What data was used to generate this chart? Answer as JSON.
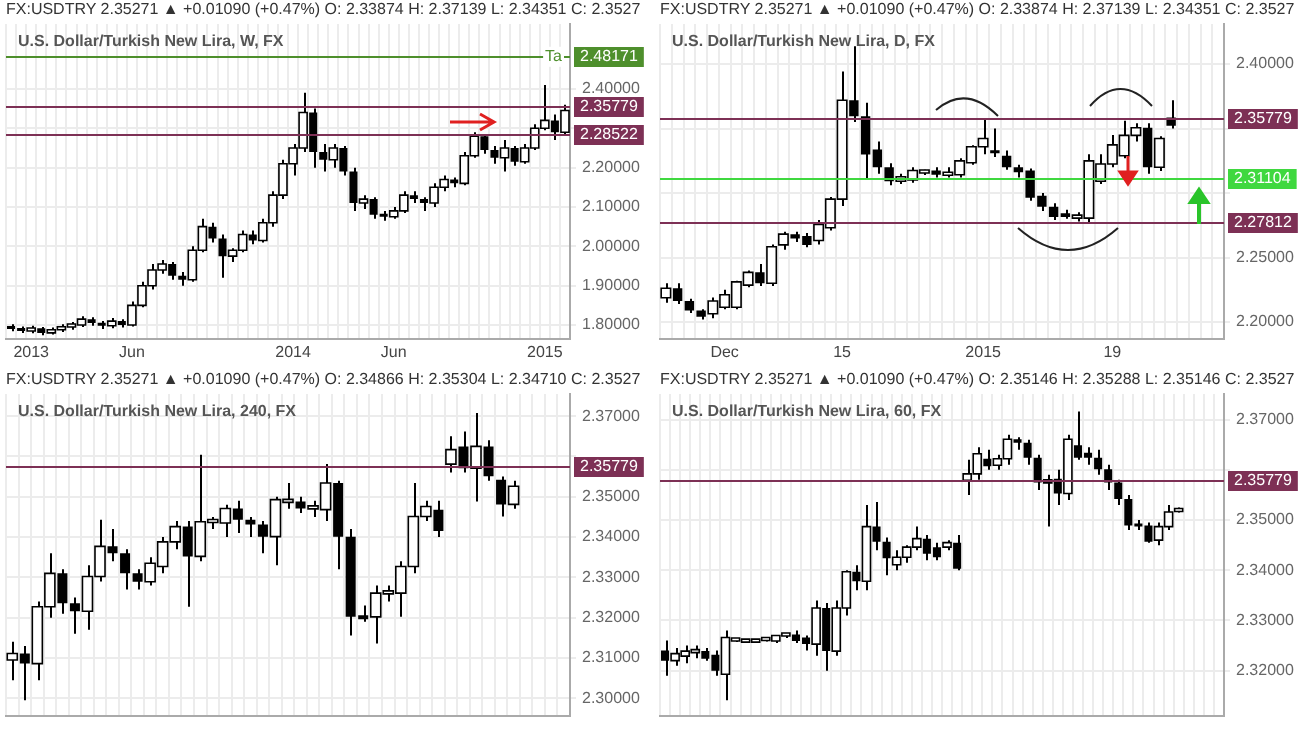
{
  "chart_data": [
    {
      "type": "candlestick",
      "title": "U.S. Dollar/Turkish New Lira, W, FX",
      "subtitle": "FX:USDTRY 2.35271 ▲ +0.01090 (+0.47%) O: 2.33874 H: 2.37139 L: 2.34351 C: 2.3527",
      "grid": true,
      "annotations": [
        "Ta"
      ],
      "categories": [
        null,
        null,
        "2013",
        null,
        null,
        null,
        null,
        null,
        null,
        null,
        null,
        null,
        "Jun",
        null,
        null,
        null,
        null,
        null,
        null,
        null,
        null,
        null,
        null,
        null,
        null,
        null,
        null,
        null,
        "2014",
        null,
        null,
        null,
        null,
        null,
        null,
        null,
        null,
        null,
        "Jun",
        null,
        null,
        null,
        null,
        null,
        null,
        null,
        null,
        null,
        null,
        null,
        null,
        null,
        null,
        "2015",
        null,
        null
      ],
      "ohlc": [
        [
          1.795,
          1.802,
          1.784,
          1.79
        ],
        [
          1.79,
          1.796,
          1.78,
          1.785
        ],
        [
          1.785,
          1.798,
          1.779,
          1.792
        ],
        [
          1.792,
          1.795,
          1.774,
          1.78
        ],
        [
          1.78,
          1.794,
          1.776,
          1.788
        ],
        [
          1.788,
          1.802,
          1.782,
          1.795
        ],
        [
          1.795,
          1.808,
          1.788,
          1.8
        ],
        [
          1.8,
          1.822,
          1.795,
          1.815
        ],
        [
          1.815,
          1.82,
          1.798,
          1.805
        ],
        [
          1.805,
          1.81,
          1.79,
          1.798
        ],
        [
          1.798,
          1.818,
          1.792,
          1.81
        ],
        [
          1.81,
          1.815,
          1.794,
          1.8
        ],
        [
          1.8,
          1.86,
          1.796,
          1.85
        ],
        [
          1.85,
          1.91,
          1.845,
          1.9
        ],
        [
          1.9,
          1.955,
          1.89,
          1.94
        ],
        [
          1.94,
          1.965,
          1.93,
          1.955
        ],
        [
          1.955,
          1.96,
          1.915,
          1.925
        ],
        [
          1.925,
          1.935,
          1.9,
          1.915
        ],
        [
          1.915,
          2.0,
          1.91,
          1.99
        ],
        [
          1.99,
          2.07,
          1.985,
          2.05
        ],
        [
          2.05,
          2.06,
          2.01,
          2.02
        ],
        [
          2.02,
          2.03,
          1.92,
          1.975
        ],
        [
          1.975,
          1.995,
          1.96,
          1.99
        ],
        [
          1.99,
          2.04,
          1.985,
          2.03
        ],
        [
          2.03,
          2.04,
          2.005,
          2.015
        ],
        [
          2.015,
          2.07,
          2.01,
          2.06
        ],
        [
          2.06,
          2.14,
          2.05,
          2.13
        ],
        [
          2.13,
          2.22,
          2.12,
          2.21
        ],
        [
          2.21,
          2.26,
          2.18,
          2.25
        ],
        [
          2.25,
          2.39,
          2.24,
          2.34
        ],
        [
          2.34,
          2.35,
          2.2,
          2.24
        ],
        [
          2.24,
          2.26,
          2.19,
          2.22
        ],
        [
          2.22,
          2.26,
          2.2,
          2.25
        ],
        [
          2.25,
          2.255,
          2.18,
          2.19
        ],
        [
          2.19,
          2.2,
          2.09,
          2.11
        ],
        [
          2.11,
          2.13,
          2.095,
          2.12
        ],
        [
          2.12,
          2.125,
          2.07,
          2.08
        ],
        [
          2.08,
          2.09,
          2.065,
          2.075
        ],
        [
          2.075,
          2.1,
          2.07,
          2.09
        ],
        [
          2.09,
          2.14,
          2.085,
          2.13
        ],
        [
          2.13,
          2.14,
          2.11,
          2.12
        ],
        [
          2.12,
          2.125,
          2.09,
          2.11
        ],
        [
          2.11,
          2.16,
          2.1,
          2.15
        ],
        [
          2.15,
          2.18,
          2.14,
          2.17
        ],
        [
          2.17,
          2.175,
          2.15,
          2.16
        ],
        [
          2.16,
          2.24,
          2.155,
          2.23
        ],
        [
          2.23,
          2.29,
          2.225,
          2.28
        ],
        [
          2.28,
          2.285,
          2.235,
          2.245
        ],
        [
          2.245,
          2.255,
          2.21,
          2.225
        ],
        [
          2.225,
          2.27,
          2.19,
          2.25
        ],
        [
          2.25,
          2.255,
          2.205,
          2.215
        ],
        [
          2.215,
          2.26,
          2.21,
          2.25
        ],
        [
          2.25,
          2.31,
          2.245,
          2.3
        ],
        [
          2.3,
          2.41,
          2.295,
          2.32
        ],
        [
          2.32,
          2.335,
          2.27,
          2.29
        ],
        [
          2.29,
          2.36,
          2.285,
          2.345
        ]
      ],
      "ylim": [
        1.765,
        2.565
      ],
      "yticks": [
        {
          "value": 1.8,
          "label": "1.80000"
        },
        {
          "value": 1.9,
          "label": "1.90000"
        },
        {
          "value": 2.0,
          "label": "2.00000"
        },
        {
          "value": 2.1,
          "label": "2.10000"
        },
        {
          "value": 2.2,
          "label": "2.20000"
        },
        {
          "value": 2.3,
          "label": null
        },
        {
          "value": 2.4,
          "label": "2.40000"
        }
      ],
      "ref_lines": [
        {
          "axis": "y",
          "value": 2.48171,
          "label": "2.48171",
          "color": "#4e8f2c"
        },
        {
          "axis": "y",
          "value": 2.35779,
          "label": "2.35779",
          "color": "#7d3055"
        },
        {
          "axis": "y",
          "value": 2.28522,
          "label": "2.28522",
          "color": "#7d3055"
        }
      ]
    },
    {
      "type": "candlestick",
      "title": "U.S. Dollar/Turkish New Lira, D, FX",
      "subtitle": "FX:USDTRY 2.35271 ▲ +0.01090 (+0.47%) O: 2.33874 H: 2.37139 L: 2.34351 C: 2.3527",
      "grid": true,
      "categories": [
        null,
        null,
        null,
        null,
        null,
        "Dec",
        null,
        null,
        null,
        null,
        null,
        null,
        null,
        null,
        null,
        "15",
        null,
        null,
        null,
        null,
        null,
        null,
        null,
        null,
        null,
        null,
        null,
        "2015",
        null,
        null,
        null,
        null,
        null,
        null,
        null,
        null,
        null,
        null,
        "19",
        null,
        null,
        null,
        null,
        null,
        null,
        null,
        null,
        null
      ],
      "ohlc": [
        [
          2.2188,
          2.23,
          2.215,
          2.2262
        ],
        [
          2.2262,
          2.23,
          2.214,
          2.2163
        ],
        [
          2.2163,
          2.218,
          2.207,
          2.2089
        ],
        [
          2.2089,
          2.21,
          2.202,
          2.204
        ],
        [
          2.2064,
          2.219,
          2.203,
          2.2163
        ],
        [
          2.2114,
          2.225,
          2.21,
          2.2212
        ],
        [
          2.2114,
          2.232,
          2.21,
          2.2311
        ],
        [
          2.2286,
          2.24,
          2.227,
          2.2385
        ],
        [
          2.2385,
          2.245,
          2.228,
          2.2301
        ],
        [
          2.2301,
          2.26,
          2.228,
          2.2583
        ],
        [
          2.2598,
          2.27,
          2.256,
          2.2681
        ],
        [
          2.2681,
          2.27,
          2.262,
          2.2647
        ],
        [
          2.2666,
          2.269,
          2.258,
          2.2598
        ],
        [
          2.2632,
          2.279,
          2.26,
          2.2756
        ],
        [
          2.2731,
          2.297,
          2.271,
          2.2953
        ],
        [
          2.2953,
          2.3941,
          2.29,
          2.3719
        ],
        [
          2.3719,
          2.4138,
          2.355,
          2.3595
        ],
        [
          2.3595,
          2.37,
          2.31,
          2.3299
        ],
        [
          2.3338,
          2.34,
          2.315,
          2.32
        ],
        [
          2.32,
          2.323,
          2.306,
          2.3091
        ],
        [
          2.3091,
          2.315,
          2.307,
          2.3126
        ],
        [
          2.3101,
          2.32,
          2.308,
          2.3175
        ],
        [
          2.3155,
          2.318,
          2.314,
          2.316
        ],
        [
          2.3175,
          2.32,
          2.312,
          2.3141
        ],
        [
          2.3138,
          2.32,
          2.312,
          2.3141
        ],
        [
          2.3141,
          2.327,
          2.312,
          2.3249
        ],
        [
          2.3235,
          2.337,
          2.322,
          2.3358
        ],
        [
          2.3358,
          2.357,
          2.33,
          2.3422
        ],
        [
          2.332,
          2.35,
          2.328,
          2.3309
        ],
        [
          2.3289,
          2.333,
          2.318,
          2.32
        ],
        [
          2.32,
          2.322,
          2.312,
          2.316
        ],
        [
          2.3175,
          2.319,
          2.294,
          2.2963
        ],
        [
          2.2978,
          2.3,
          2.286,
          2.2894
        ],
        [
          2.2894,
          2.292,
          2.279,
          2.2815
        ],
        [
          2.2844,
          2.287,
          2.28,
          2.2815
        ],
        [
          2.2805,
          2.285,
          2.278,
          2.2815
        ],
        [
          2.2805,
          2.33,
          2.277,
          2.3249
        ],
        [
          2.3091,
          2.33,
          2.307,
          2.3225
        ],
        [
          2.3225,
          2.345,
          2.32,
          2.3373
        ],
        [
          2.3289,
          2.356,
          2.327,
          2.3447
        ],
        [
          2.3447,
          2.354,
          2.34,
          2.3506
        ],
        [
          2.3506,
          2.354,
          2.315,
          2.32
        ],
        [
          2.32,
          2.344,
          2.317,
          2.3422
        ],
        [
          2.3585,
          2.3719,
          2.35,
          2.3521
        ],
        null,
        null,
        null,
        null
      ],
      "ylim": [
        2.187,
        2.431
      ],
      "yticks": [
        {
          "value": 2.2,
          "label": "2.20000"
        },
        {
          "value": 2.25,
          "label": "2.25000"
        },
        {
          "value": 2.3,
          "label": null
        },
        {
          "value": 2.35,
          "label": null
        },
        {
          "value": 2.4,
          "label": "2.40000"
        }
      ],
      "ref_lines": [
        {
          "axis": "y",
          "value": 2.35779,
          "label": "2.35779",
          "color": "#7d3055"
        },
        {
          "axis": "y",
          "value": 2.31104,
          "label": "2.31104",
          "color": "#3fd83f"
        },
        {
          "axis": "y",
          "value": 2.27812,
          "label": "2.27812",
          "color": "#7d3055"
        }
      ]
    },
    {
      "type": "candlestick",
      "title": "U.S. Dollar/Turkish New Lira, 240, FX",
      "subtitle": "FX:USDTRY 2.35271 ▲ +0.01090 (+0.47%) O: 2.34866 H: 2.35304 L: 2.34710 C: 2.3527",
      "grid": true,
      "tick_labels": "y",
      "categories": [
        null,
        null,
        null,
        null,
        null,
        null,
        null,
        null,
        null,
        null,
        null,
        null,
        null,
        null,
        null,
        null,
        null,
        null,
        null,
        null,
        null,
        null,
        null,
        null,
        null,
        null,
        null,
        null,
        null,
        null,
        null,
        null,
        null,
        null,
        null,
        null,
        null,
        null,
        null,
        null,
        null,
        null,
        null,
        null,
        null
      ],
      "ohlc": [
        [
          2.3095,
          2.314,
          2.3045,
          2.3111
        ],
        [
          2.3111,
          2.313,
          2.2995,
          2.3086
        ],
        [
          2.3086,
          2.324,
          2.3045,
          2.3227
        ],
        [
          2.3227,
          2.336,
          2.32,
          2.331
        ],
        [
          2.331,
          2.332,
          2.321,
          2.3236
        ],
        [
          2.3236,
          2.325,
          2.316,
          2.3216
        ],
        [
          2.3216,
          2.333,
          2.317,
          2.3302
        ],
        [
          2.3302,
          2.3443,
          2.329,
          2.3377
        ],
        [
          2.3377,
          2.342,
          2.334,
          2.336
        ],
        [
          2.336,
          2.337,
          2.327,
          2.331
        ],
        [
          2.331,
          2.332,
          2.327,
          2.3289
        ],
        [
          2.3289,
          2.335,
          2.328,
          2.3335
        ],
        [
          2.3327,
          2.34,
          2.331,
          2.3388
        ],
        [
          2.3388,
          2.344,
          2.337,
          2.3426
        ],
        [
          2.3426,
          2.344,
          2.3227,
          2.3352
        ],
        [
          2.3352,
          2.3604,
          2.334,
          2.3438
        ],
        [
          2.3436,
          2.345,
          2.342,
          2.3438
        ],
        [
          2.3435,
          2.348,
          2.34,
          2.3471
        ],
        [
          2.3471,
          2.349,
          2.341,
          2.3443
        ],
        [
          2.3443,
          2.345,
          2.34,
          2.3431
        ],
        [
          2.3431,
          2.344,
          2.336,
          2.3401
        ],
        [
          2.3401,
          2.35,
          2.333,
          2.3493
        ],
        [
          2.3486,
          2.3534,
          2.347,
          2.3488
        ],
        [
          2.3488,
          2.35,
          2.346,
          2.3471
        ],
        [
          2.347,
          2.349,
          2.345,
          2.3472
        ],
        [
          2.3468,
          2.3581,
          2.344,
          2.3534
        ],
        [
          2.3534,
          2.354,
          2.332,
          2.3401
        ],
        [
          2.3401,
          2.342,
          2.3156,
          2.3202
        ],
        [
          2.3206,
          2.323,
          2.319,
          2.3196
        ],
        [
          2.3202,
          2.328,
          2.3136,
          2.3261
        ],
        [
          2.3259,
          2.328,
          2.324,
          2.3261
        ],
        [
          2.3261,
          2.334,
          2.3202,
          2.3327
        ],
        [
          2.3327,
          2.3534,
          2.331,
          2.3451
        ],
        [
          2.3451,
          2.349,
          2.344,
          2.3476
        ],
        [
          2.3468,
          2.349,
          2.34,
          2.3415
        ],
        [
          2.3581,
          2.365,
          2.356,
          2.3617
        ],
        [
          2.3625,
          2.3662,
          2.356,
          2.3571
        ],
        [
          2.3571,
          2.3708,
          2.3488,
          2.3625
        ],
        [
          2.3625,
          2.364,
          2.354,
          2.3551
        ],
        [
          2.3542,
          2.355,
          2.3451,
          2.3481
        ],
        [
          2.3481,
          2.354,
          2.347,
          2.3526
        ],
        null,
        null,
        null,
        null
      ],
      "ylim": [
        2.2955,
        2.3755
      ],
      "yticks": [
        {
          "value": 2.3,
          "label": "2.30000"
        },
        {
          "value": 2.31,
          "label": "2.31000"
        },
        {
          "value": 2.32,
          "label": "2.32000"
        },
        {
          "value": 2.33,
          "label": "2.33000"
        },
        {
          "value": 2.34,
          "label": "2.34000"
        },
        {
          "value": 2.35,
          "label": "2.35000"
        },
        {
          "value": 2.36,
          "label": null
        },
        {
          "value": 2.37,
          "label": "2.37000"
        }
      ],
      "ref_lines": [
        {
          "axis": "y",
          "value": 2.35779,
          "label": "2.35779",
          "color": "#7d3055"
        }
      ]
    },
    {
      "type": "candlestick",
      "title": "U.S. Dollar/Turkish New Lira, 60, FX",
      "subtitle": "FX:USDTRY 2.35271 ▲ +0.01090 (+0.47%) O: 2.35146 H: 2.35288 L: 2.35146 C: 2.3527",
      "grid": true,
      "tick_labels": "y",
      "categories": [
        null,
        null,
        null,
        null,
        null,
        null,
        null,
        null,
        null,
        null,
        null,
        null,
        null,
        null,
        null,
        null,
        null,
        null,
        null,
        null,
        null,
        null,
        null,
        null,
        null,
        null,
        null,
        null,
        null,
        null,
        null,
        null,
        null,
        null,
        null,
        null,
        null,
        null,
        null,
        null,
        null,
        null,
        null,
        null,
        null,
        null,
        null,
        null,
        null,
        null,
        null,
        null,
        null,
        null,
        null,
        null
      ],
      "ohlc": [
        [
          2.324,
          2.326,
          2.319,
          2.322
        ],
        [
          2.322,
          2.3245,
          2.321,
          2.3234
        ],
        [
          2.3229,
          2.325,
          2.3215,
          2.3239
        ],
        [
          2.3236,
          2.325,
          2.3225,
          2.3239
        ],
        [
          2.3239,
          2.3245,
          2.322,
          2.3224
        ],
        [
          2.3232,
          2.324,
          2.319,
          2.32
        ],
        [
          2.3193,
          2.328,
          2.3141,
          2.3266
        ],
        [
          2.3259,
          2.3263,
          2.3257,
          2.326
        ],
        [
          2.3257,
          2.3261,
          2.3255,
          2.3258
        ],
        [
          2.3257,
          2.3261,
          2.3255,
          2.3258
        ],
        [
          2.326,
          2.3265,
          2.3258,
          2.3261
        ],
        [
          2.3259,
          2.327,
          2.3255,
          2.327
        ],
        [
          2.3269,
          2.3275,
          2.3265,
          2.327
        ],
        [
          2.3272,
          2.328,
          2.3255,
          2.3259
        ],
        [
          2.3266,
          2.327,
          2.324,
          2.3253
        ],
        [
          2.3253,
          2.334,
          2.323,
          2.3325
        ],
        [
          2.3325,
          2.3335,
          2.32,
          2.3239
        ],
        [
          2.3239,
          2.334,
          2.323,
          2.3325
        ],
        [
          2.3325,
          2.34,
          2.331,
          2.3397
        ],
        [
          2.3397,
          2.341,
          2.336,
          2.3378
        ],
        [
          2.3378,
          2.353,
          2.336,
          2.3487
        ],
        [
          2.3487,
          2.3536,
          2.344,
          2.3457
        ],
        [
          2.3457,
          2.3465,
          2.339,
          2.3424
        ],
        [
          2.3411,
          2.344,
          2.34,
          2.3426
        ],
        [
          2.3426,
          2.345,
          2.3415,
          2.3446
        ],
        [
          2.3446,
          2.3487,
          2.344,
          2.3463
        ],
        [
          2.3463,
          2.347,
          2.342,
          2.3433
        ],
        [
          2.3446,
          2.3455,
          2.342,
          2.3426
        ],
        [
          2.3446,
          2.346,
          2.344,
          2.3455
        ],
        [
          2.3455,
          2.347,
          2.34,
          2.3403
        ],
        [
          2.3579,
          2.362,
          2.355,
          2.3592
        ],
        [
          2.3592,
          2.3645,
          2.358,
          2.3632
        ],
        [
          2.3622,
          2.364,
          2.36,
          2.3607
        ],
        [
          2.3609,
          2.363,
          2.36,
          2.3622
        ],
        [
          2.3622,
          2.367,
          2.361,
          2.3661
        ],
        [
          2.3661,
          2.3665,
          2.364,
          2.3654
        ],
        [
          2.3654,
          2.366,
          2.361,
          2.3624
        ],
        [
          2.3624,
          2.363,
          2.356,
          2.3575
        ],
        [
          2.3574,
          2.359,
          2.3487,
          2.3576
        ],
        [
          2.3582,
          2.36,
          2.353,
          2.3553
        ],
        [
          2.3553,
          2.367,
          2.354,
          2.3661
        ],
        [
          2.3649,
          2.3716,
          2.362,
          2.3624
        ],
        [
          2.3634,
          2.3645,
          2.361,
          2.3624
        ],
        [
          2.3624,
          2.364,
          2.359,
          2.3601
        ],
        [
          2.3601,
          2.361,
          2.356,
          2.3575
        ],
        [
          2.3575,
          2.358,
          2.353,
          2.3542
        ],
        [
          2.3542,
          2.355,
          2.348,
          2.3489
        ],
        [
          2.3492,
          2.35,
          2.348,
          2.3487
        ],
        [
          2.3489,
          2.3495,
          2.3455,
          2.3457
        ],
        [
          2.346,
          2.3495,
          2.345,
          2.3487
        ],
        [
          2.3487,
          2.353,
          2.348,
          2.3516
        ],
        [
          2.3517,
          2.3525,
          2.3515,
          2.3519
        ],
        null,
        null,
        null,
        null
      ],
      "ylim": [
        2.3109,
        2.3751
      ],
      "yticks": [
        {
          "value": 2.32,
          "label": "2.32000"
        },
        {
          "value": 2.33,
          "label": "2.33000"
        },
        {
          "value": 2.34,
          "label": "2.34000"
        },
        {
          "value": 2.35,
          "label": "2.35000"
        },
        {
          "value": 2.36,
          "label": null
        },
        {
          "value": 2.37,
          "label": "2.37000"
        }
      ],
      "ref_lines": [
        {
          "axis": "y",
          "value": 2.35779,
          "label": "2.35779",
          "color": "#7d3055"
        }
      ]
    }
  ]
}
